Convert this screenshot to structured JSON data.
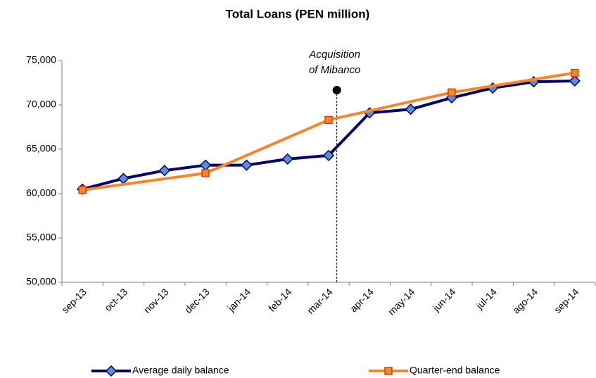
{
  "chart_data": {
    "type": "line",
    "title": "Total Loans (PEN million)",
    "categories": [
      "sep-13",
      "oct-13",
      "nov-13",
      "dec-13",
      "jan-14",
      "feb-14",
      "mar-14",
      "apr-14",
      "may-14",
      "jun-14",
      "jul-14",
      "ago-14",
      "sep-14"
    ],
    "series": [
      {
        "name": "Average daily balance",
        "color": "#000066",
        "marker_color": "#5b8fd6",
        "values": [
          60500,
          61700,
          62600,
          63200,
          63200,
          63900,
          64300,
          69100,
          69500,
          70800,
          71900,
          72600,
          72700
        ]
      },
      {
        "name": "Quarter-end balance",
        "color": "#f4862c",
        "marker_color": "#f4862c",
        "x": [
          "sep-13",
          "dec-13",
          "mar-14",
          "jun-14",
          "sep-14"
        ],
        "values": [
          60400,
          62300,
          68300,
          71400,
          73600
        ]
      }
    ],
    "annotation": {
      "text": [
        "Acquisition",
        "of Mibanco"
      ]
    },
    "ylim": [
      50000,
      75000
    ],
    "yticks": [
      {
        "value": 50000,
        "label": "50,000"
      },
      {
        "value": 55000,
        "label": "55,000"
      },
      {
        "value": 60000,
        "label": "60,000"
      },
      {
        "value": 65000,
        "label": "65,000"
      },
      {
        "value": 70000,
        "label": "70,000"
      },
      {
        "value": 75000,
        "label": "75,000"
      }
    ],
    "legend": "bottom"
  }
}
